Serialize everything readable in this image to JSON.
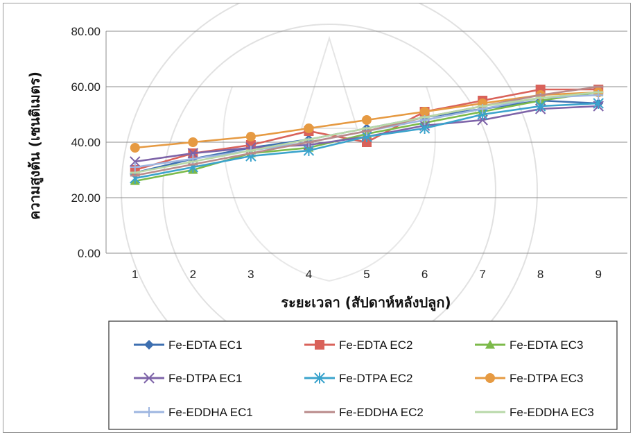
{
  "chart_data": {
    "type": "line",
    "xlabel": "ระยะเวลา (สัปดาห์หลังปลูก)",
    "ylabel": "ความสูงต้น (เซนติเมตร)",
    "categories": [
      "1",
      "2",
      "3",
      "4",
      "5",
      "6",
      "7",
      "8",
      "9"
    ],
    "ylim": [
      0,
      80
    ],
    "yticks": [
      "0.00",
      "20.00",
      "40.00",
      "60.00",
      "80.00"
    ],
    "grid": true,
    "legend_position": "bottom",
    "series": [
      {
        "name": "Fe-EDTA EC1",
        "color": "#3d6fb0",
        "marker": "diamond",
        "values": [
          29,
          34,
          38,
          41,
          45,
          49,
          52,
          55,
          54
        ]
      },
      {
        "name": "Fe-EDTA EC2",
        "color": "#d9625a",
        "marker": "square",
        "values": [
          30,
          36,
          39,
          44,
          40,
          51,
          55,
          59,
          59
        ]
      },
      {
        "name": "Fe-EDTA EC3",
        "color": "#7cba4a",
        "marker": "triangle",
        "values": [
          26,
          30,
          36,
          38,
          43,
          47,
          51,
          55,
          58
        ]
      },
      {
        "name": "Fe-DTPA EC1",
        "color": "#7d63a8",
        "marker": "x",
        "values": [
          33,
          36,
          38,
          39,
          42,
          46,
          48,
          52,
          53
        ]
      },
      {
        "name": "Fe-DTPA EC2",
        "color": "#3aa3cc",
        "marker": "star",
        "values": [
          27,
          31,
          35,
          37,
          42,
          45,
          50,
          53,
          54
        ]
      },
      {
        "name": "Fe-DTPA EC3",
        "color": "#e69a42",
        "marker": "circle",
        "values": [
          38,
          40,
          42,
          45,
          48,
          51,
          54,
          57,
          58
        ]
      },
      {
        "name": "Fe-EDDHA EC1",
        "color": "#9db5e0",
        "marker": "plus",
        "values": [
          31,
          34,
          37,
          40,
          44,
          48,
          52,
          56,
          57
        ]
      },
      {
        "name": "Fe-EDDHA EC2",
        "color": "#b98a8a",
        "marker": "dash",
        "values": [
          28,
          32,
          36,
          40,
          44,
          49,
          53,
          57,
          60
        ]
      },
      {
        "name": "Fe-EDDHA EC3",
        "color": "#b8d8a8",
        "marker": "dash",
        "values": [
          29,
          33,
          37,
          41,
          45,
          49,
          53,
          56,
          58
        ]
      }
    ]
  }
}
